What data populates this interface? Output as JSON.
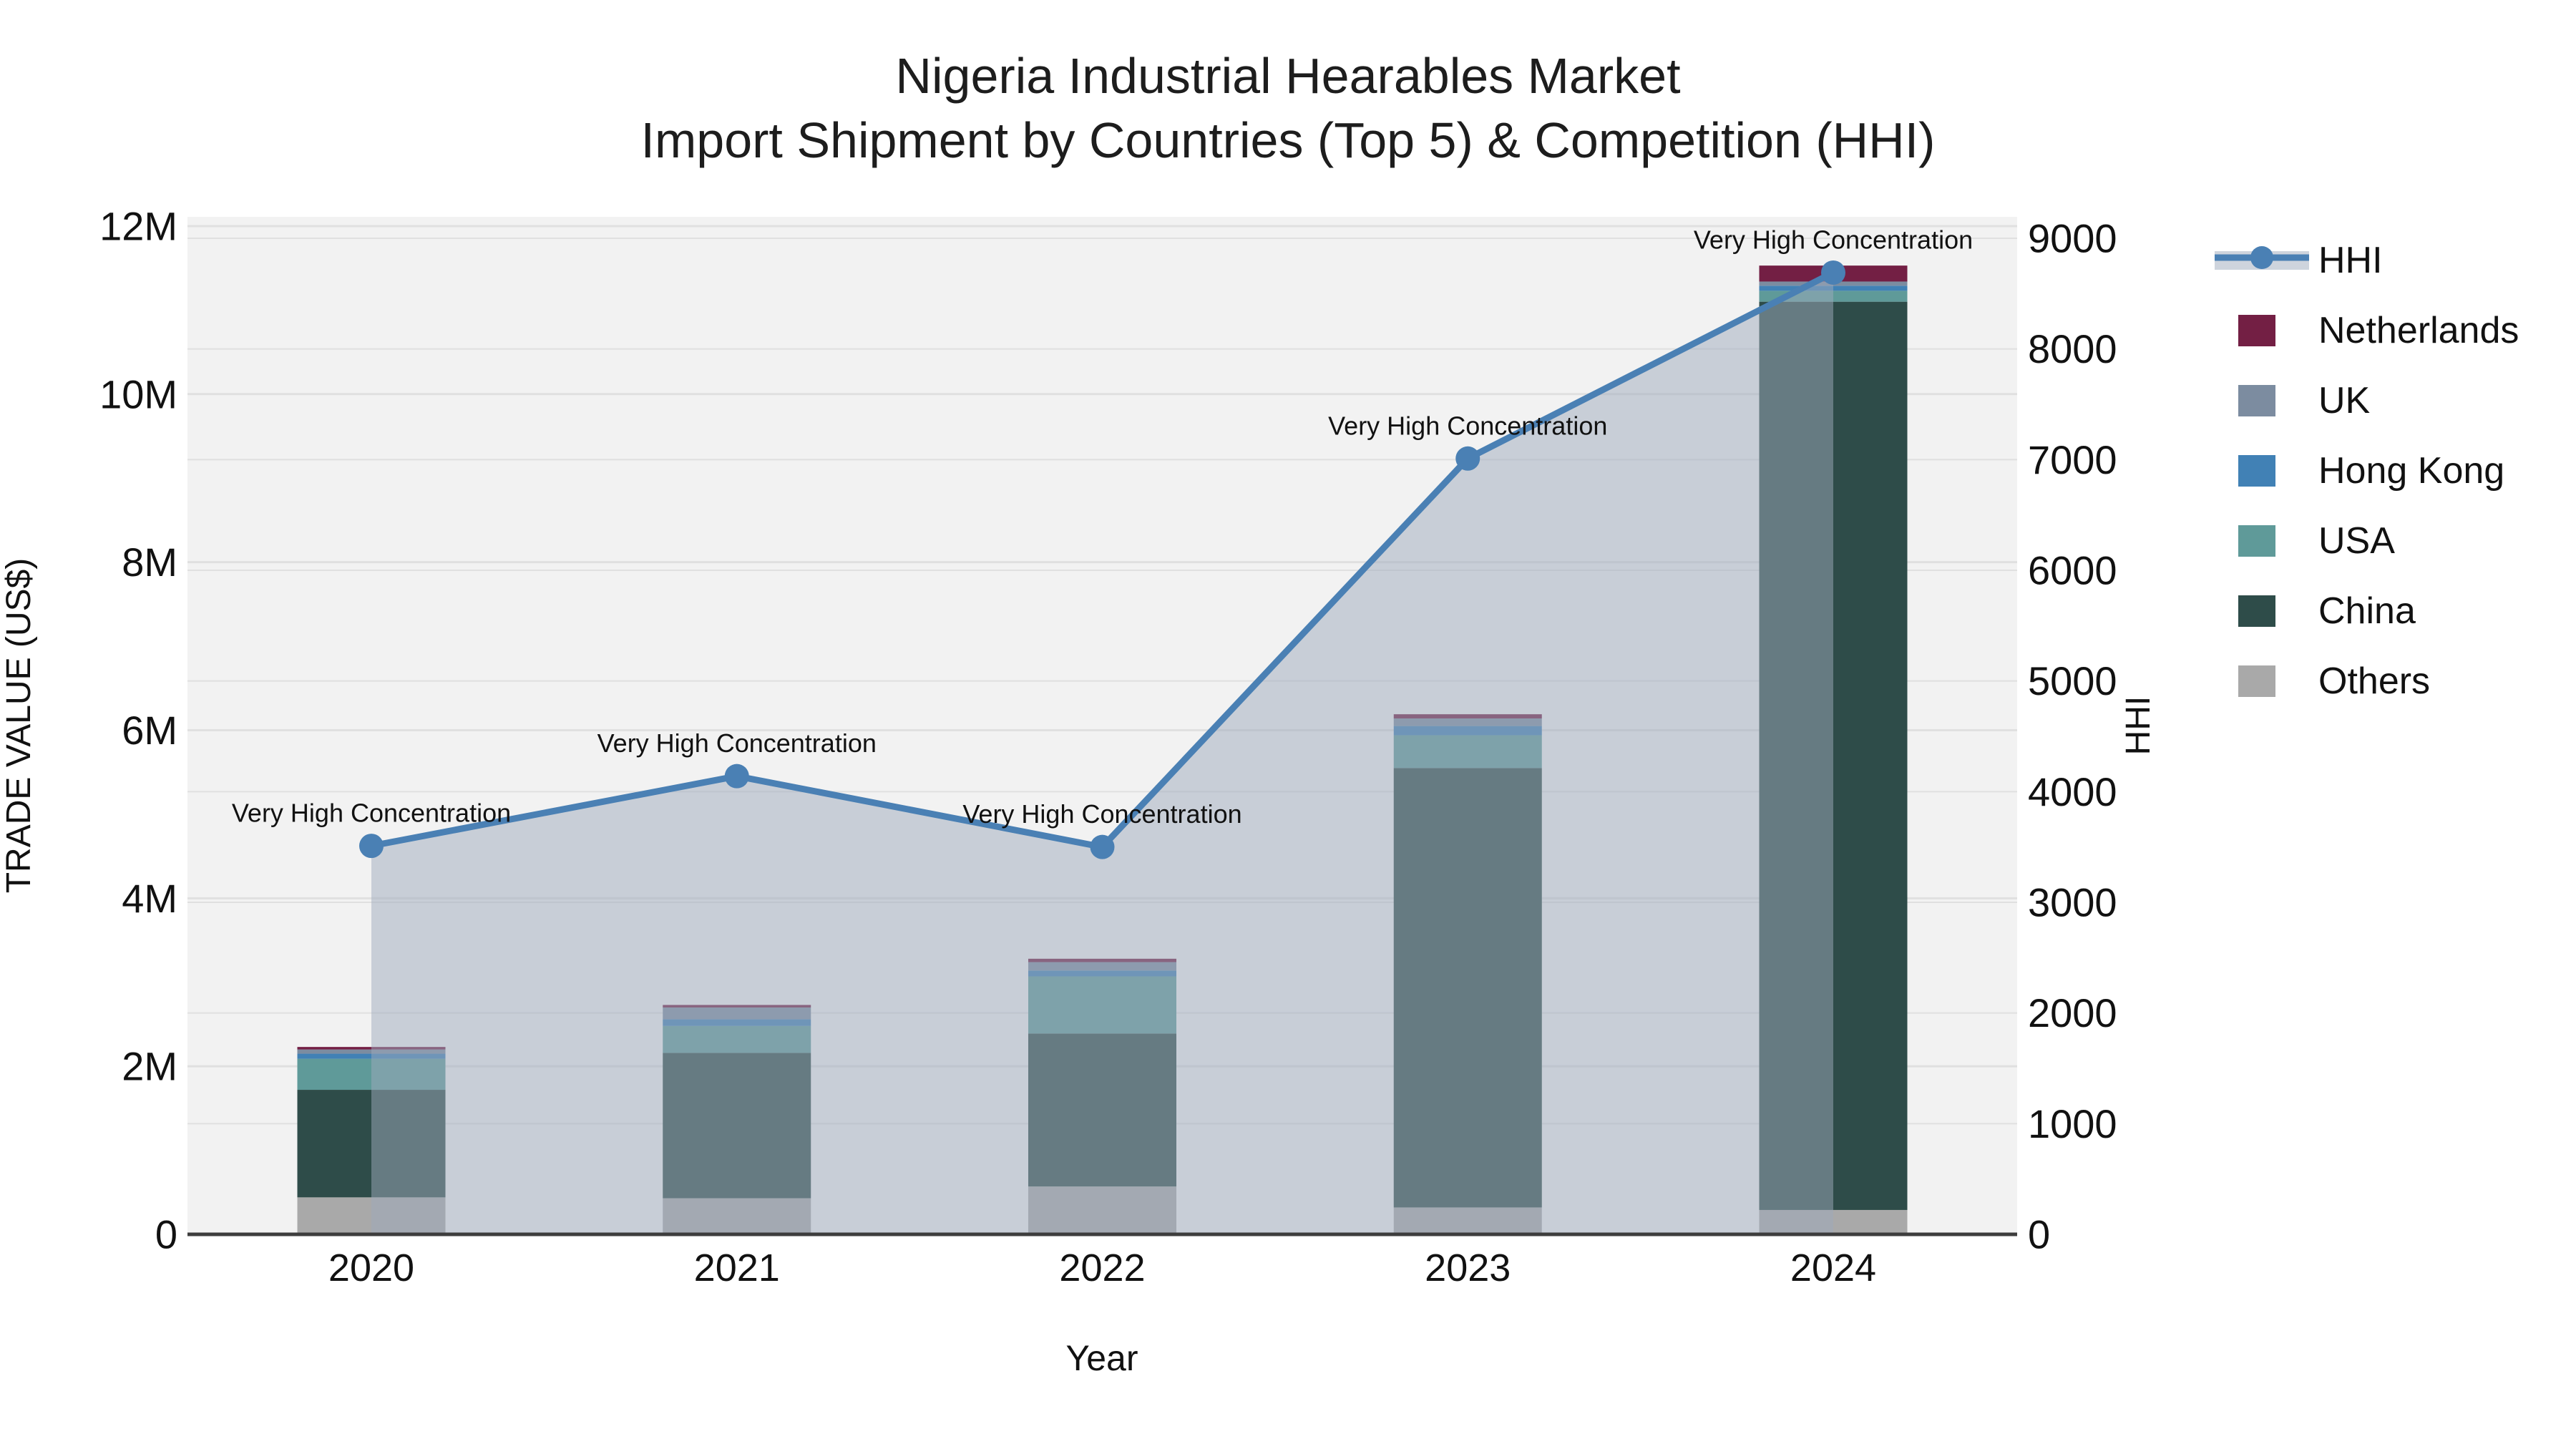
{
  "title": {
    "line1": "Nigeria Industrial Hearables Market",
    "line2": "Import Shipment by Countries (Top 5) & Competition (HHI)"
  },
  "axes": {
    "x": {
      "title": "Year",
      "tick_labels": [
        "2020",
        "2021",
        "2022",
        "2023",
        "2024"
      ]
    },
    "y_left": {
      "title": "TRADE VALUE (US$)",
      "tick_labels": [
        "0",
        "2M",
        "4M",
        "6M",
        "8M",
        "10M",
        "12M"
      ],
      "tick_step_musd": 2,
      "range_musd": [
        0,
        12
      ]
    },
    "y_right": {
      "title": "HHI",
      "tick_labels": [
        "0",
        "1000",
        "2000",
        "3000",
        "4000",
        "5000",
        "6000",
        "7000",
        "8000",
        "9000"
      ],
      "tick_step": 1000,
      "range": [
        0,
        9000
      ]
    }
  },
  "legend": {
    "items": [
      {
        "label": "HHI",
        "swatch": "line-marker"
      },
      {
        "label": "Netherlands",
        "swatch": "square"
      },
      {
        "label": "UK",
        "swatch": "square"
      },
      {
        "label": "Hong Kong",
        "swatch": "square"
      },
      {
        "label": "USA",
        "swatch": "square"
      },
      {
        "label": "China",
        "swatch": "square"
      },
      {
        "label": "Others",
        "swatch": "square"
      }
    ]
  },
  "colors": {
    "hhi_line": "#4a80b4",
    "hhi_area_fill": "rgba(158,170,188,0.5)",
    "netherlands": "#731f44",
    "uk": "#7c8ca0",
    "hong_kong": "#4181b5",
    "usa": "#5f9a99",
    "china": "#2e4c49",
    "others": "#a9a9a9",
    "plot_background": "#f2f2f2",
    "gridline": "#e0e0e0",
    "axis_line": "#3d3d3d"
  },
  "chart_data": {
    "type": "bar+line",
    "categories": [
      "2020",
      "2021",
      "2022",
      "2023",
      "2024"
    ],
    "bar_unit": "US$ millions",
    "stack_order_bottom_to_top": [
      "Others",
      "China",
      "USA",
      "Hong Kong",
      "UK",
      "Netherlands"
    ],
    "series": [
      {
        "name": "Netherlands",
        "axis": "left",
        "color_key": "netherlands",
        "values": [
          0.03,
          0.03,
          0.04,
          0.05,
          0.19
        ]
      },
      {
        "name": "UK",
        "axis": "left",
        "color_key": "uk",
        "values": [
          0.05,
          0.14,
          0.1,
          0.09,
          0.05
        ]
      },
      {
        "name": "Hong Kong",
        "axis": "left",
        "color_key": "hong_kong",
        "values": [
          0.06,
          0.08,
          0.07,
          0.11,
          0.06
        ]
      },
      {
        "name": "USA",
        "axis": "left",
        "color_key": "usa",
        "values": [
          0.37,
          0.32,
          0.68,
          0.39,
          0.13
        ]
      },
      {
        "name": "China",
        "axis": "left",
        "color_key": "china",
        "values": [
          1.28,
          1.73,
          1.82,
          5.23,
          10.81
        ]
      },
      {
        "name": "Others",
        "axis": "left",
        "color_key": "others",
        "values": [
          0.44,
          0.43,
          0.57,
          0.32,
          0.29
        ]
      }
    ],
    "bar_totals_musd": [
      2.23,
      2.73,
      3.28,
      6.19,
      11.53
    ],
    "line_series": {
      "name": "HHI",
      "axis": "right",
      "values": [
        3510,
        4140,
        3500,
        7010,
        8690
      ],
      "has_area_fill": true,
      "markers": true
    },
    "annotations": [
      {
        "text": "Very High Concentration",
        "category": "2020"
      },
      {
        "text": "Very High Concentration",
        "category": "2021"
      },
      {
        "text": "Very High Concentration",
        "category": "2022"
      },
      {
        "text": "Very High Concentration",
        "category": "2023"
      },
      {
        "text": "Very High Concentration",
        "category": "2024"
      }
    ],
    "ylim_left_musd": [
      0,
      12
    ],
    "ylim_right": [
      0,
      9000
    ],
    "grid": true,
    "legend_position": "right"
  }
}
